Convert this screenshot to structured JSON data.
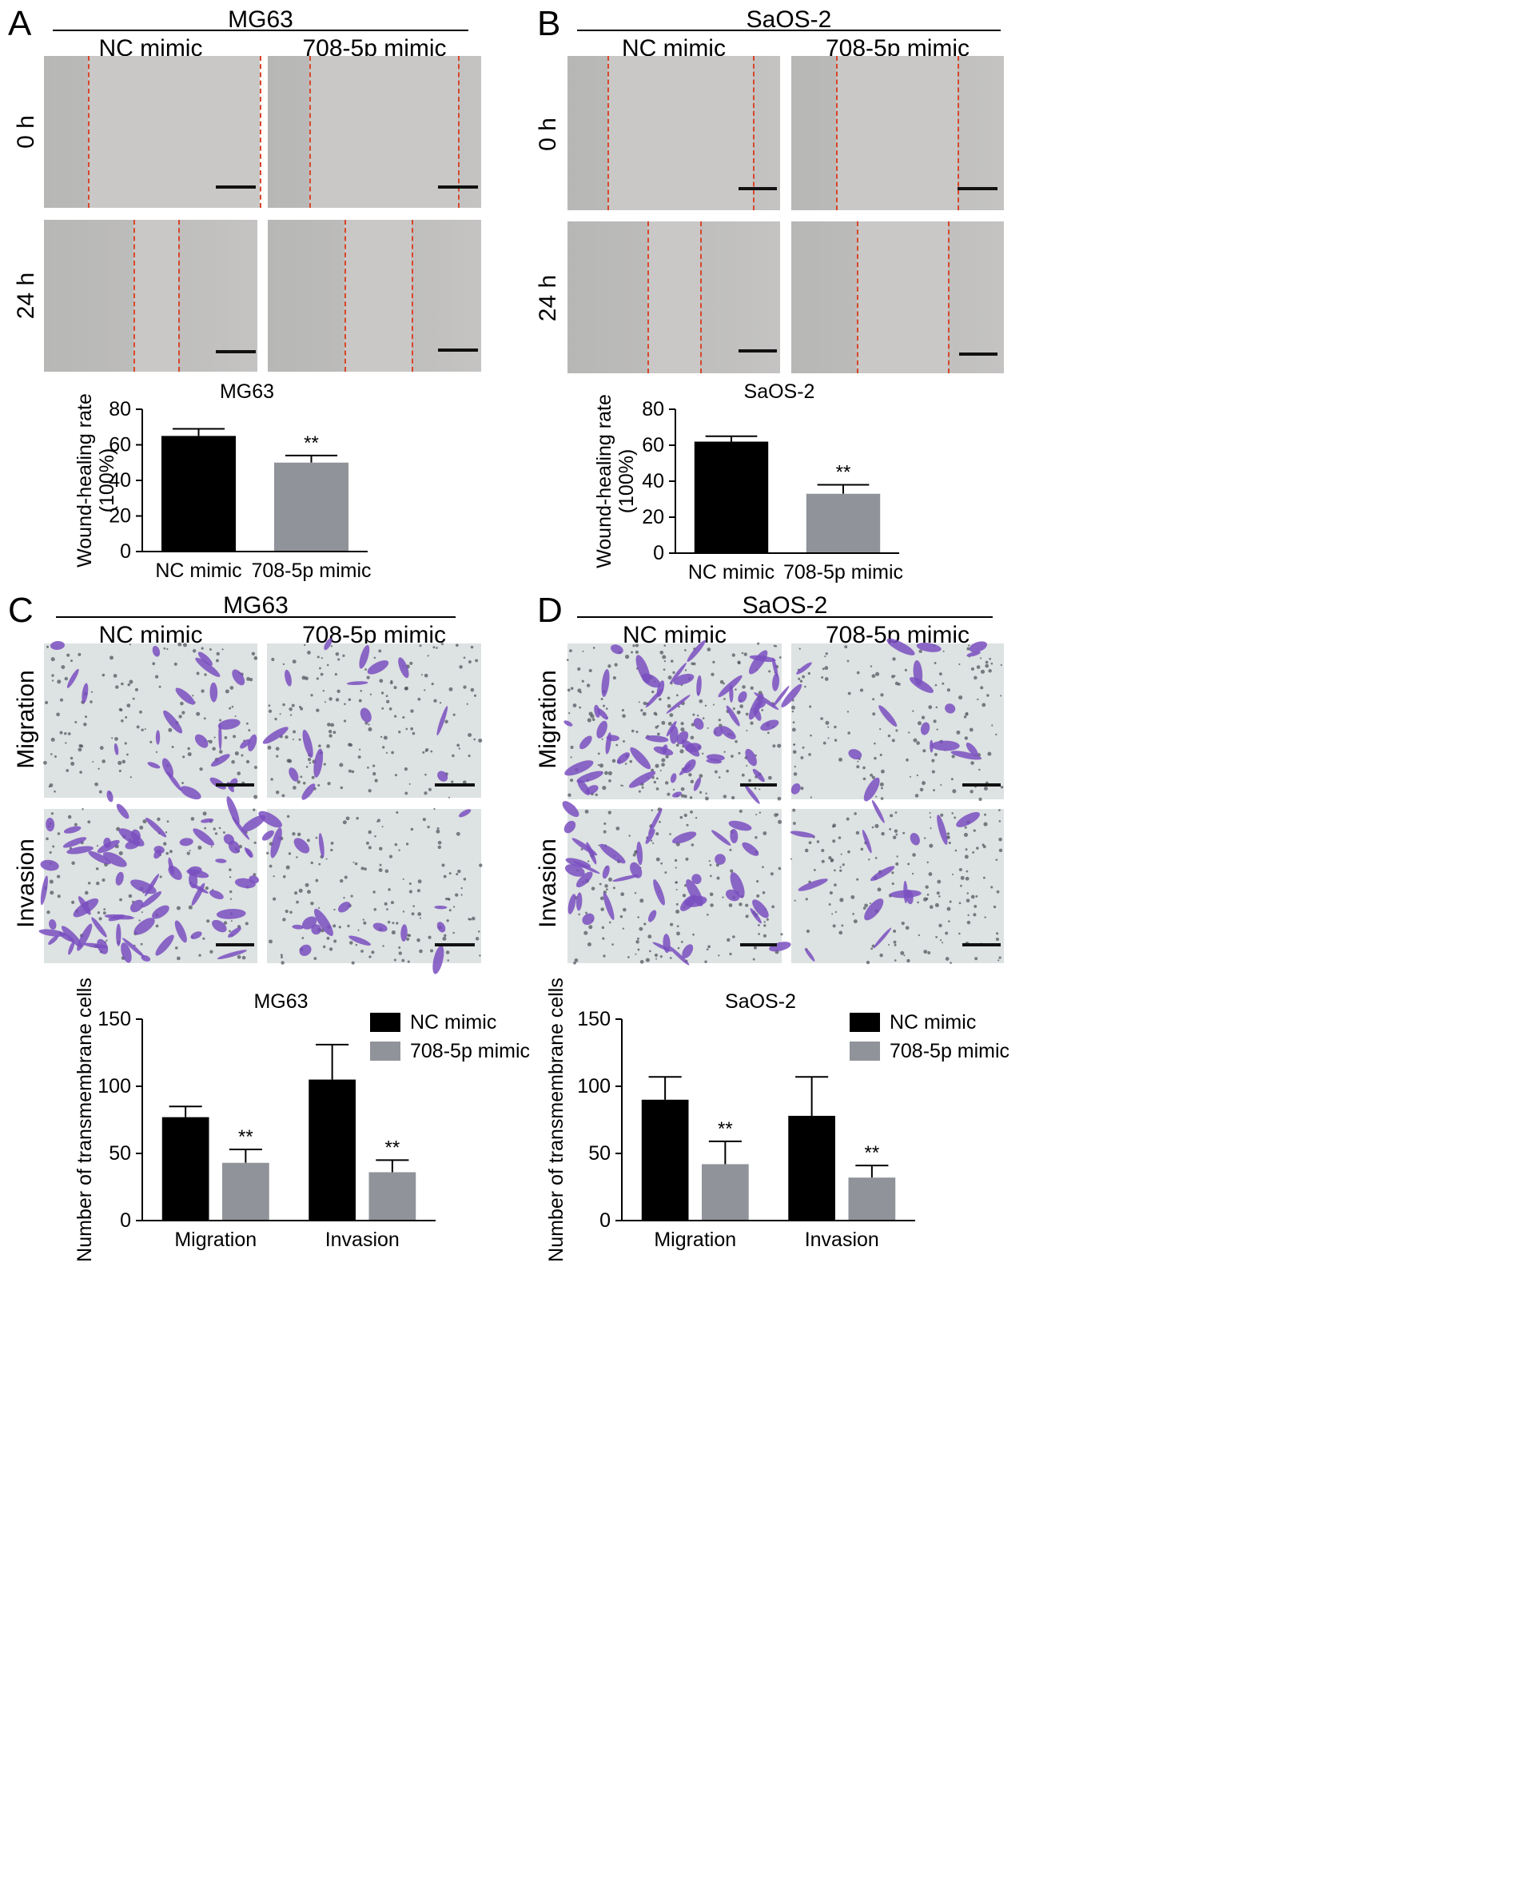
{
  "panels": {
    "A": {
      "letter": "A",
      "cell_line": "MG63",
      "col_labels": [
        "NC mimic",
        "708-5p mimic"
      ],
      "row_labels": [
        "0 h",
        "24 h"
      ]
    },
    "B": {
      "letter": "B",
      "cell_line": "SaOS-2",
      "col_labels": [
        "NC mimic",
        "708-5p mimic"
      ],
      "row_labels": [
        "0 h",
        "24 h"
      ]
    },
    "C": {
      "letter": "C",
      "cell_line": "MG63",
      "col_labels": [
        "NC mimic",
        "708-5p mimic"
      ],
      "row_labels": [
        "Migration",
        "Invasion"
      ]
    },
    "D": {
      "letter": "D",
      "cell_line": "SaOS-2",
      "col_labels": [
        "NC mimic",
        "708-5p mimic"
      ],
      "row_labels": [
        "Migration",
        "Invasion"
      ]
    }
  },
  "colors": {
    "black_bar": "#000000",
    "gray_bar": "#909399",
    "cut_line": "#d8462a",
    "crystal_violet": "#7a4fc0"
  },
  "chart_data": [
    {
      "id": "A",
      "type": "bar",
      "title": "MG63",
      "ylabel": "Wound-healing rate (100%)",
      "ylabel_lines": [
        "Wound-healing rate",
        "(100%)"
      ],
      "categories": [
        "NC mimic",
        "708-5p mimic"
      ],
      "values": [
        65,
        50
      ],
      "errors": [
        4,
        4
      ],
      "significance": [
        "",
        "**"
      ],
      "colors": [
        "#000000",
        "#909399"
      ],
      "ylim": [
        0,
        80
      ],
      "yticks": [
        0,
        20,
        40,
        60,
        80
      ]
    },
    {
      "id": "B",
      "type": "bar",
      "title": "SaOS-2",
      "ylabel": "Wound-healing rate (100%)",
      "ylabel_lines": [
        "Wound-healing rate",
        "(100%)"
      ],
      "categories": [
        "NC mimic",
        "708-5p mimic"
      ],
      "values": [
        62,
        33
      ],
      "errors": [
        3,
        5
      ],
      "significance": [
        "",
        "**"
      ],
      "colors": [
        "#000000",
        "#909399"
      ],
      "ylim": [
        0,
        80
      ],
      "yticks": [
        0,
        20,
        40,
        60,
        80
      ]
    },
    {
      "id": "C",
      "type": "bar",
      "title": "MG63",
      "ylabel": "Number of transmembrane cells",
      "categories": [
        "Migration",
        "Invasion"
      ],
      "series": [
        {
          "name": "NC mimic",
          "values": [
            77,
            105
          ],
          "errors": [
            8,
            26
          ],
          "color": "#000000"
        },
        {
          "name": "708-5p mimic",
          "values": [
            43,
            36
          ],
          "errors": [
            10,
            9
          ],
          "color": "#909399"
        }
      ],
      "significance": [
        [
          "",
          "**"
        ],
        [
          "",
          "**"
        ]
      ],
      "legend": "top-right",
      "ylim": [
        0,
        150
      ],
      "yticks": [
        0,
        50,
        100,
        150
      ]
    },
    {
      "id": "D",
      "type": "bar",
      "title": "SaOS-2",
      "ylabel": "Number of transmembrane cells",
      "categories": [
        "Migration",
        "Invasion"
      ],
      "series": [
        {
          "name": "NC mimic",
          "values": [
            90,
            78
          ],
          "errors": [
            17,
            29
          ],
          "color": "#000000"
        },
        {
          "name": "708-5p mimic",
          "values": [
            42,
            32
          ],
          "errors": [
            17,
            9
          ],
          "color": "#909399"
        }
      ],
      "significance": [
        [
          "",
          "**"
        ],
        [
          "",
          "**"
        ]
      ],
      "legend": "top-right",
      "ylim": [
        0,
        150
      ],
      "yticks": [
        0,
        50,
        100,
        150
      ]
    }
  ]
}
